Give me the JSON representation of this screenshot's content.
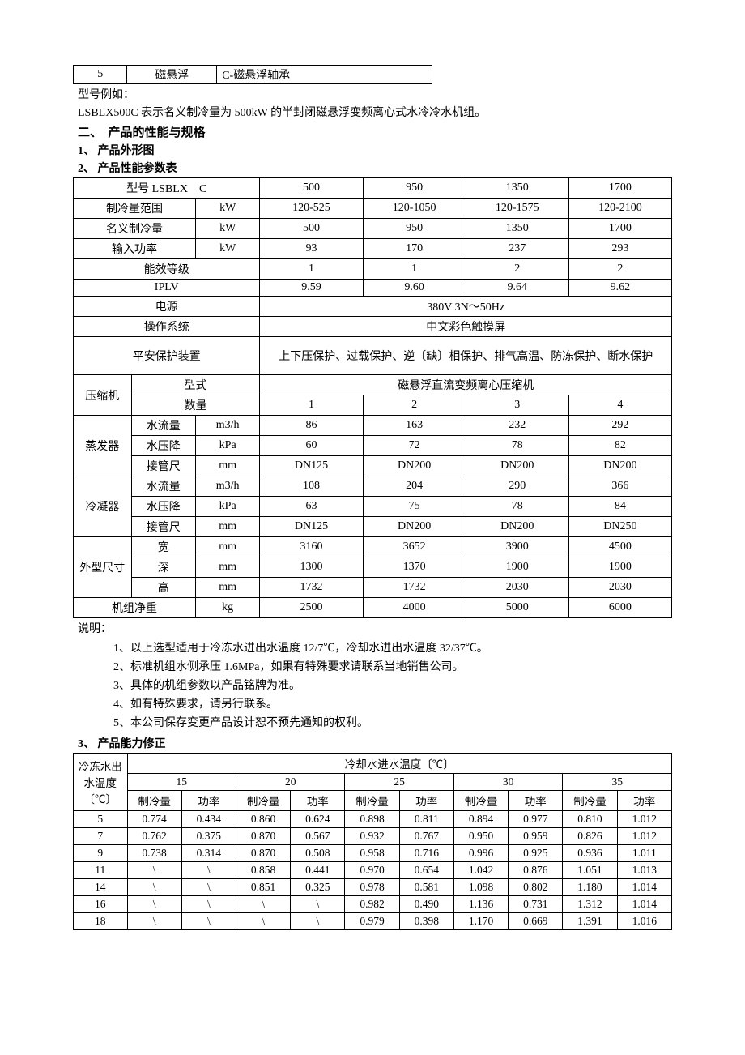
{
  "topTable": {
    "col1": "5",
    "col2": "磁悬浮",
    "col3": "C-磁悬浮轴承"
  },
  "intro": {
    "line1": "型号例如：",
    "line2": "LSBLX500C 表示名义制冷量为 500kW 的半封闭磁悬浮变频离心式水冷冷水机组。"
  },
  "section2": {
    "title": "二、　产品的性能与规格",
    "sub1": "1、 产品外形图",
    "sub2": "2、 产品性能参数表"
  },
  "specTable": {
    "modelLabel": "型号 LSBLX　C",
    "models": [
      "500",
      "950",
      "1350",
      "1700"
    ],
    "rows": {
      "coolingRange": {
        "label": "制冷量范围",
        "unit": "kW",
        "values": [
          "120-525",
          "120-1050",
          "120-1575",
          "120-2100"
        ]
      },
      "nominalCooling": {
        "label": "名义制冷量",
        "unit": "kW",
        "values": [
          "500",
          "950",
          "1350",
          "1700"
        ]
      },
      "inputPower": {
        "label": "输入功率",
        "unit": "kW",
        "values": [
          "93",
          "170",
          "237",
          "293"
        ]
      },
      "efficiency": {
        "label": "能效等级",
        "values": [
          "1",
          "1",
          "2",
          "2"
        ]
      },
      "iplv": {
        "label": "IPLV",
        "values": [
          "9.59",
          "9.60",
          "9.64",
          "9.62"
        ]
      },
      "power": {
        "label": "电源",
        "value": "380V  3N～50Hz"
      },
      "os": {
        "label": "操作系统",
        "value": "中文彩色触摸屏"
      },
      "safety": {
        "label": "平安保护装置",
        "value": "上下压保护、过载保护、逆〔缺〕相保护、排气高温、防冻保护、断水保护"
      },
      "compressor": {
        "label": "压缩机",
        "typeLabel": "型式",
        "typeValue": "磁悬浮直流变频离心压缩机",
        "qtyLabel": "数量",
        "qtyValues": [
          "1",
          "2",
          "3",
          "4"
        ]
      },
      "evaporator": {
        "label": "蒸发器",
        "flowLabel": "水流量",
        "flowUnit": "m3/h",
        "flowValues": [
          "86",
          "163",
          "232",
          "292"
        ],
        "dropLabel": "水压降",
        "dropUnit": "kPa",
        "dropValues": [
          "60",
          "72",
          "78",
          "82"
        ],
        "pipeLabel": "接管尺",
        "pipeUnit": "mm",
        "pipeValues": [
          "DN125",
          "DN200",
          "DN200",
          "DN200"
        ]
      },
      "condenser": {
        "label": "冷凝器",
        "flowLabel": "水流量",
        "flowUnit": "m3/h",
        "flowValues": [
          "108",
          "204",
          "290",
          "366"
        ],
        "dropLabel": "水压降",
        "dropUnit": "kPa",
        "dropValues": [
          "63",
          "75",
          "78",
          "84"
        ],
        "pipeLabel": "接管尺",
        "pipeUnit": "mm",
        "pipeValues": [
          "DN125",
          "DN200",
          "DN200",
          "DN250"
        ]
      },
      "dimensions": {
        "label": "外型尺寸",
        "widthLabel": "宽",
        "unit": "mm",
        "widthValues": [
          "3160",
          "3652",
          "3900",
          "4500"
        ],
        "depthLabel": "深",
        "depthValues": [
          "1300",
          "1370",
          "1900",
          "1900"
        ],
        "heightLabel": "高",
        "heightValues": [
          "1732",
          "1732",
          "2030",
          "2030"
        ]
      },
      "weight": {
        "label": "机组净重",
        "unit": "kg",
        "values": [
          "2500",
          "4000",
          "5000",
          "6000"
        ]
      }
    }
  },
  "notesLabel": "说明：",
  "notes": [
    "1、以上选型适用于冷冻水进出水温度 12/7℃，冷却水进出水温度 32/37℃。",
    "2、标准机组水侧承压 1.6MPa，如果有特殊要求请联系当地销售公司。",
    "3、具体的机组参数以产品铭牌为准。",
    "4、如有特殊要求，请另行联系。",
    "5、本公司保存变更产品设计恕不预先通知的权利。"
  ],
  "section3": {
    "title": "3、 产品能力修正"
  },
  "capacityTable": {
    "rowHeader": "冷冻水出水温度〔℃〕",
    "colHeader": "冷却水进水温度〔℃〕",
    "temps": [
      "15",
      "20",
      "25",
      "30",
      "35"
    ],
    "subCooling": "制冷量",
    "subPower": "功率",
    "rows": [
      {
        "t": "5",
        "v": [
          "0.774",
          "0.434",
          "0.860",
          "0.624",
          "0.898",
          "0.811",
          "0.894",
          "0.977",
          "0.810",
          "1.012"
        ]
      },
      {
        "t": "7",
        "v": [
          "0.762",
          "0.375",
          "0.870",
          "0.567",
          "0.932",
          "0.767",
          "0.950",
          "0.959",
          "0.826",
          "1.012"
        ]
      },
      {
        "t": "9",
        "v": [
          "0.738",
          "0.314",
          "0.870",
          "0.508",
          "0.958",
          "0.716",
          "0.996",
          "0.925",
          "0.936",
          "1.011"
        ]
      },
      {
        "t": "11",
        "v": [
          "\\",
          "\\",
          "0.858",
          "0.441",
          "0.970",
          "0.654",
          "1.042",
          "0.876",
          "1.051",
          "1.013"
        ]
      },
      {
        "t": "14",
        "v": [
          "\\",
          "\\",
          "0.851",
          "0.325",
          "0.978",
          "0.581",
          "1.098",
          "0.802",
          "1.180",
          "1.014"
        ]
      },
      {
        "t": "16",
        "v": [
          "\\",
          "\\",
          "\\",
          "\\",
          "0.982",
          "0.490",
          "1.136",
          "0.731",
          "1.312",
          "1.014"
        ]
      },
      {
        "t": "18",
        "v": [
          "\\",
          "\\",
          "\\",
          "\\",
          "0.979",
          "0.398",
          "1.170",
          "0.669",
          "1.391",
          "1.016"
        ]
      }
    ]
  }
}
